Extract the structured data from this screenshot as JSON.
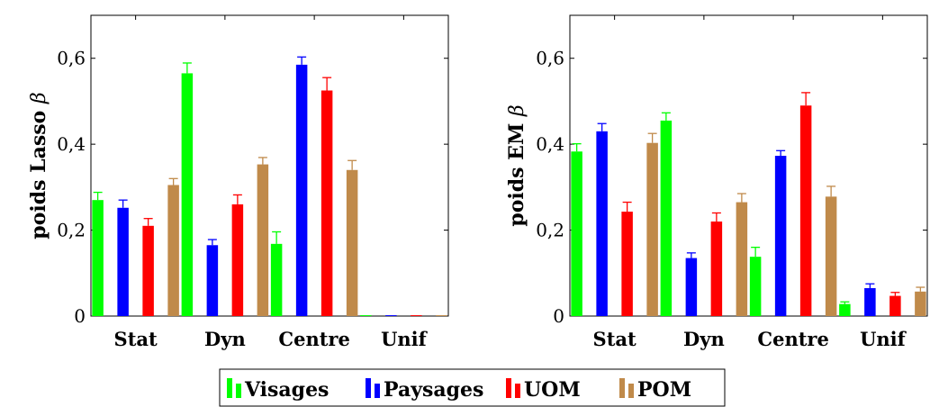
{
  "chart_data": [
    {
      "type": "bar",
      "ylabel_prefix": "poids Lasso",
      "ylabel_symbol": "β",
      "categories": [
        "Stat",
        "Dyn",
        "Centre",
        "Unif"
      ],
      "ylim": [
        0,
        0.7
      ],
      "yticks": [
        0,
        0.2,
        0.4,
        0.6
      ],
      "ytick_labels": [
        "0",
        "0,2",
        "0,4",
        "0,6"
      ],
      "grid": false,
      "series": [
        {
          "name": "Visages",
          "color": "#00ff00",
          "values": [
            0.27,
            0.565,
            0.168,
            0.002
          ],
          "errors": [
            0.018,
            0.024,
            0.028,
            0.001
          ]
        },
        {
          "name": "Paysages",
          "color": "#0000ff",
          "values": [
            0.252,
            0.165,
            0.585,
            0.002
          ],
          "errors": [
            0.018,
            0.013,
            0.018,
            0.001
          ]
        },
        {
          "name": "UOM",
          "color": "#ff0000",
          "values": [
            0.21,
            0.26,
            0.525,
            0.002
          ],
          "errors": [
            0.017,
            0.022,
            0.03,
            0.001
          ]
        },
        {
          "name": "POM",
          "color": "#c08a4a",
          "values": [
            0.305,
            0.353,
            0.34,
            0.002
          ],
          "errors": [
            0.015,
            0.016,
            0.022,
            0.001
          ]
        }
      ]
    },
    {
      "type": "bar",
      "ylabel_prefix": "poids EM",
      "ylabel_symbol": "β",
      "categories": [
        "Stat",
        "Dyn",
        "Centre",
        "Unif"
      ],
      "ylim": [
        0,
        0.7
      ],
      "yticks": [
        0,
        0.2,
        0.4,
        0.6
      ],
      "ytick_labels": [
        "0",
        "0,2",
        "0,4",
        "0,6"
      ],
      "grid": false,
      "series": [
        {
          "name": "Visages",
          "color": "#00ff00",
          "values": [
            0.383,
            0.455,
            0.138,
            0.028
          ],
          "errors": [
            0.018,
            0.018,
            0.022,
            0.005
          ]
        },
        {
          "name": "Paysages",
          "color": "#0000ff",
          "values": [
            0.43,
            0.135,
            0.373,
            0.065
          ],
          "errors": [
            0.018,
            0.012,
            0.012,
            0.01
          ]
        },
        {
          "name": "UOM",
          "color": "#ff0000",
          "values": [
            0.243,
            0.22,
            0.49,
            0.047
          ],
          "errors": [
            0.022,
            0.02,
            0.03,
            0.008
          ]
        },
        {
          "name": "POM",
          "color": "#c08a4a",
          "values": [
            0.403,
            0.265,
            0.278,
            0.057
          ],
          "errors": [
            0.022,
            0.02,
            0.024,
            0.01
          ]
        }
      ]
    }
  ],
  "legend": {
    "placement": "bottom-center",
    "entries": [
      "Visages",
      "Paysages",
      "UOM",
      "POM"
    ]
  }
}
